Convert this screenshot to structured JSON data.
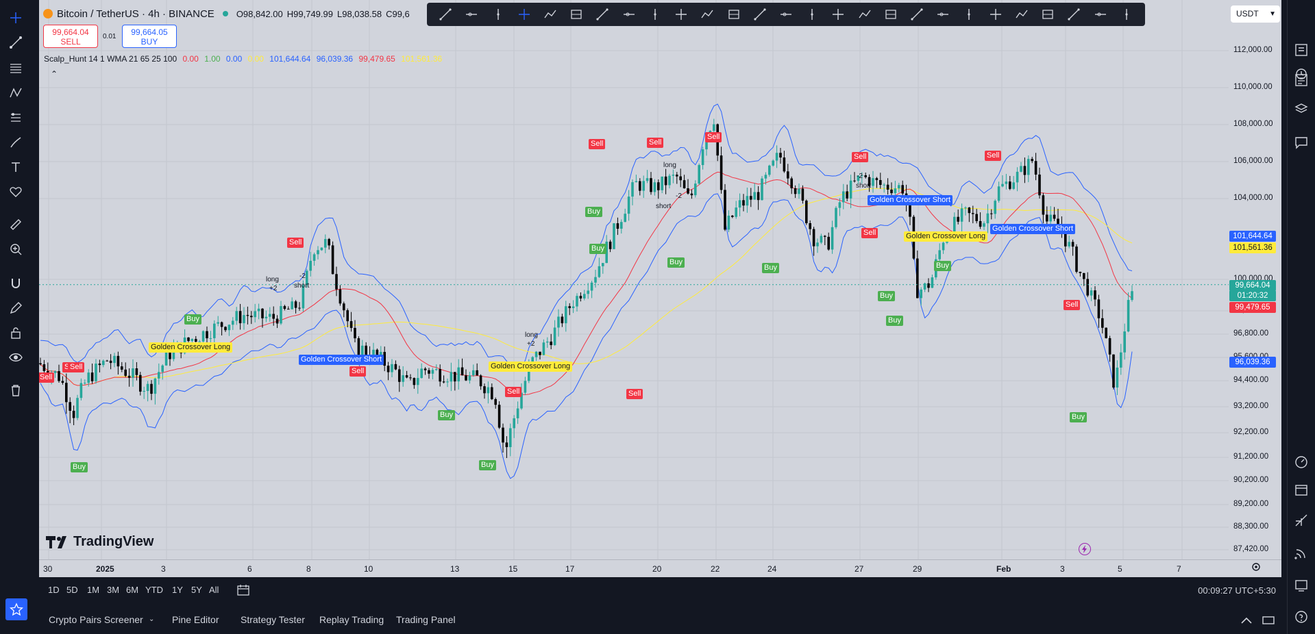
{
  "symbol": {
    "title": "Bitcoin / TetherUS · 4h · BINANCE",
    "o": "O98,842.00",
    "h": "H99,749.99",
    "l": "L98,038.58",
    "c": "C99,6"
  },
  "trade": {
    "sell_price": "99,664.04",
    "sell_label": "SELL",
    "spread": "0.01",
    "buy_price": "99,664.05",
    "buy_label": "BUY"
  },
  "indicator": {
    "name": "Scalp_Hunt 14 1 WMA 21 65 25 100",
    "v1": "0.00",
    "v2": "1.00",
    "v3": "0.00",
    "v4": "0.00",
    "v5": "101,644.64",
    "v6": "96,039.36",
    "v7": "99,479.65",
    "v8": "101,561.36"
  },
  "currency": "USDT",
  "price_axis": {
    "labels": [
      "112,000.00",
      "110,000.00",
      "108,000.00",
      "106,000.00",
      "104,000.00",
      "100,000.00",
      "98,000.00",
      "96,800.00",
      "95,600.00",
      "94,400.00",
      "93,200.00",
      "92,200.00",
      "91,200.00",
      "90,200.00",
      "89,200.00",
      "88,300.00",
      "87,420.00"
    ],
    "tags": {
      "upper": "101,644.64",
      "wma": "101,561.36",
      "last": "99,664.04",
      "countdown": "01:20:32",
      "ma": "99,479.65",
      "lower": "96,039.36"
    }
  },
  "time_axis": [
    "30",
    "2025",
    "3",
    "6",
    "8",
    "10",
    "13",
    "15",
    "17",
    "20",
    "22",
    "24",
    "27",
    "29",
    "Feb",
    "3",
    "5",
    "7"
  ],
  "signals": {
    "buy": "Buy",
    "sell": "Sell",
    "gc_short": "Golden Crossover Short",
    "gc_long": "Golden Crossover Long",
    "long": "long",
    "short": "short",
    "p2": "+2",
    "m2": "-2"
  },
  "range_buttons": [
    "1D",
    "5D",
    "1M",
    "3M",
    "6M",
    "YTD",
    "1Y",
    "5Y",
    "All"
  ],
  "clock": "00:09:27 UTC+5:30",
  "bottom_tabs": [
    "Crypto Pairs Screener",
    "Pine Editor",
    "Strategy Tester",
    "Replay Trading",
    "Trading Panel"
  ],
  "branding": "TradingView",
  "colors": {
    "up": "#26a69a",
    "down": "#000000",
    "upper_band": "#2962ff",
    "ma_red": "#f23645",
    "ma_yellow": "#ffeb3b",
    "buy": "#4caf50",
    "sell": "#f23645",
    "gc_short": "#2962ff",
    "gc_long": "#ffeb3b"
  }
}
